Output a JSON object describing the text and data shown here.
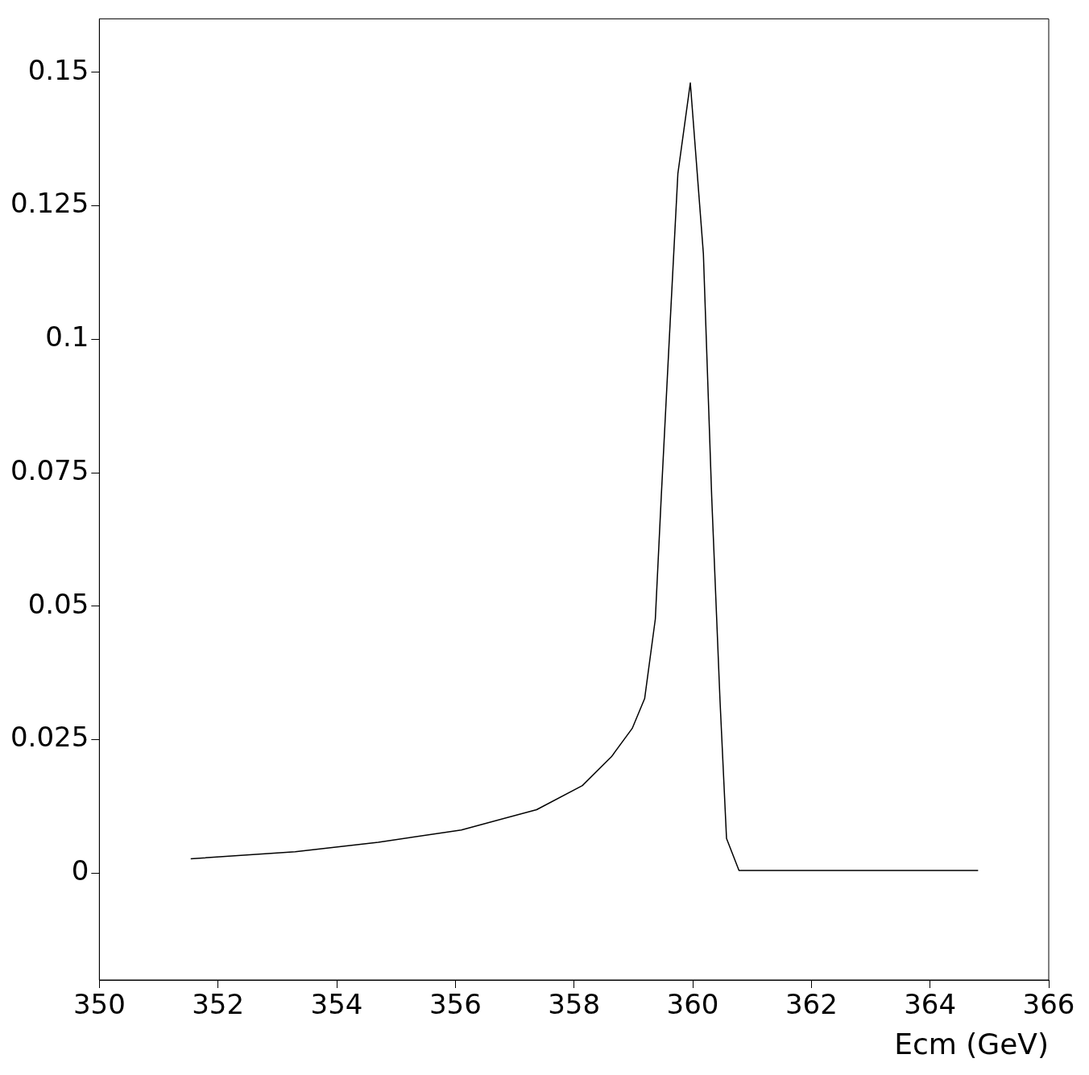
{
  "chart_data": {
    "type": "line",
    "xlabel": "Ecm (GeV)",
    "x": [
      351.54,
      353.3,
      354.7,
      356.1,
      357.37,
      358.14,
      358.63,
      358.98,
      359.19,
      359.37,
      359.47,
      359.61,
      359.75,
      359.96,
      360.18,
      360.32,
      360.46,
      360.57,
      360.78,
      364.81
    ],
    "series": [
      {
        "color": "#000000",
        "values": [
          0.0027,
          0.004,
          0.0058,
          0.0081,
          0.0119,
          0.0164,
          0.0218,
          0.0271,
          0.0327,
          0.0476,
          0.0705,
          0.101,
          0.131,
          0.148,
          0.116,
          0.0705,
          0.0324,
          0.0065,
          0.0005,
          0.0005
        ]
      }
    ],
    "xlim": [
      350,
      366
    ],
    "xticks": [
      350,
      352,
      354,
      356,
      358,
      360,
      362,
      364,
      366
    ],
    "ylim": [
      -0.02,
      0.16
    ],
    "yticks": [
      0,
      0.025,
      0.05,
      0.075,
      0.1,
      0.125,
      0.15
    ],
    "grid": false,
    "legend": false,
    "marker": "none",
    "line_style": "solid"
  }
}
